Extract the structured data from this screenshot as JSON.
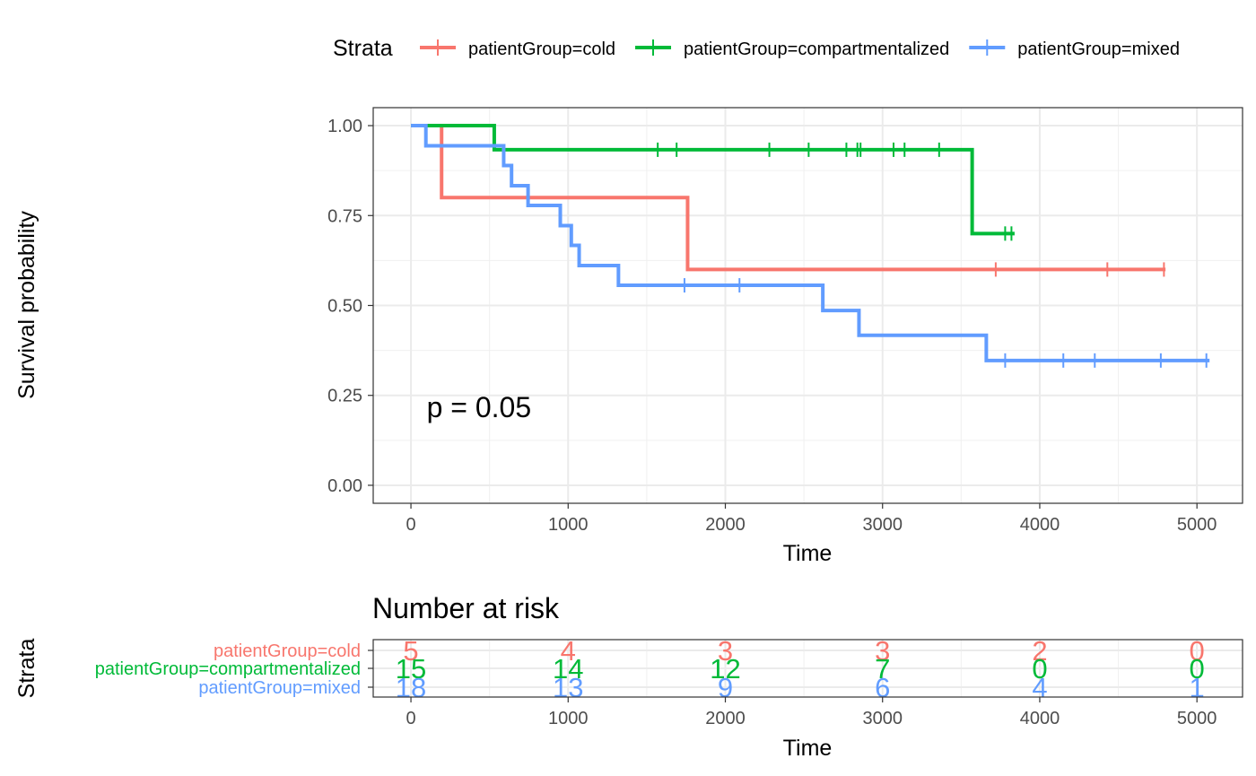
{
  "chart_data": [
    {
      "type": "line",
      "subtype": "kaplan-meier",
      "title": "",
      "xlabel": "Time",
      "ylabel": "Survival probability",
      "xlim": [
        -240,
        5290
      ],
      "ylim": [
        -0.05,
        1.05
      ],
      "x_ticks": [
        0,
        1000,
        2000,
        3000,
        4000,
        5000
      ],
      "y_ticks": [
        0.0,
        0.25,
        0.5,
        0.75,
        1.0
      ],
      "y_tick_labels": [
        "0.00",
        "0.25",
        "0.50",
        "0.75",
        "1.00"
      ],
      "grid": true,
      "legend": {
        "title": "Strata",
        "placement": "top",
        "entries": [
          "patientGroup=cold",
          "patientGroup=compartmentalized",
          "patientGroup=mixed"
        ]
      },
      "annotation": "p = 0.05",
      "annotation_at": [
        100,
        0.19
      ],
      "series": [
        {
          "name": "patientGroup=cold",
          "color": "#F8766D",
          "steps": [
            [
              0,
              1.0
            ],
            [
              195,
              0.8
            ],
            [
              1760,
              0.6
            ],
            [
              4800,
              0.6
            ]
          ],
          "censored": [
            3720,
            4430,
            4790
          ]
        },
        {
          "name": "patientGroup=compartmentalized",
          "color": "#00BA38",
          "steps": [
            [
              0,
              1.0
            ],
            [
              530,
              0.933
            ],
            [
              3570,
              0.7
            ],
            [
              3840,
              0.7
            ]
          ],
          "censored": [
            1570,
            1690,
            2280,
            2530,
            2770,
            2840,
            2860,
            3070,
            3140,
            3360,
            3780,
            3820
          ]
        },
        {
          "name": "patientGroup=mixed",
          "color": "#619CFF",
          "steps": [
            [
              0,
              1.0
            ],
            [
              95,
              0.944
            ],
            [
              590,
              0.889
            ],
            [
              640,
              0.833
            ],
            [
              745,
              0.778
            ],
            [
              950,
              0.722
            ],
            [
              1020,
              0.667
            ],
            [
              1070,
              0.611
            ],
            [
              1320,
              0.556
            ],
            [
              2620,
              0.486
            ],
            [
              2850,
              0.417
            ],
            [
              3660,
              0.347
            ],
            [
              5080,
              0.347
            ]
          ],
          "censored": [
            1740,
            2090,
            3780,
            4150,
            4350,
            4770,
            5060
          ]
        }
      ]
    },
    {
      "type": "table",
      "title": "Number at risk",
      "xlabel": "Time",
      "ylabel": "Strata",
      "xlim": [
        -240,
        5290
      ],
      "x_ticks": [
        0,
        1000,
        2000,
        3000,
        4000,
        5000
      ],
      "rows": [
        {
          "name": "patientGroup=cold",
          "color": "#F8766D",
          "values": [
            5,
            4,
            3,
            3,
            2,
            0
          ]
        },
        {
          "name": "patientGroup=compartmentalized",
          "color": "#00BA38",
          "values": [
            15,
            14,
            12,
            7,
            0,
            0
          ]
        },
        {
          "name": "patientGroup=mixed",
          "color": "#619CFF",
          "values": [
            18,
            13,
            9,
            6,
            4,
            1
          ]
        }
      ]
    }
  ]
}
